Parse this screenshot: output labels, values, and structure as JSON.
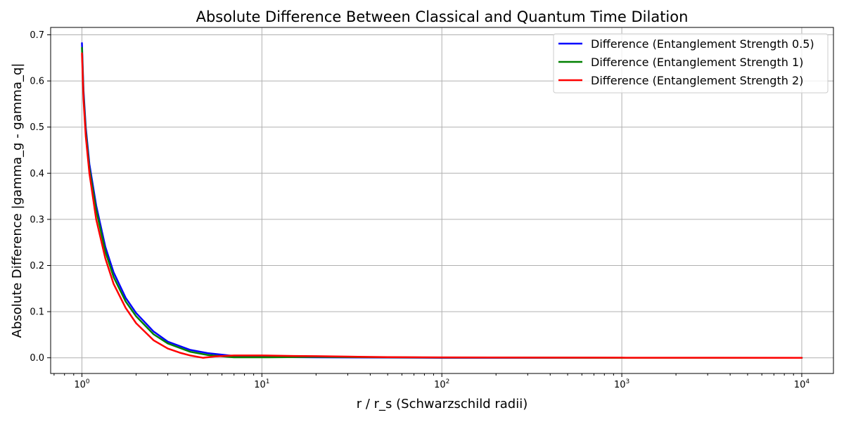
{
  "chart_data": {
    "type": "line",
    "title": "Absolute Difference Between Classical and Quantum Time Dilation",
    "xlabel": "r / r_s (Schwarzschild radii)",
    "ylabel": "Absolute Difference |gamma_g - gamma_q|",
    "xscale": "log",
    "xlim": [
      0.67,
      15000
    ],
    "ylim": [
      -0.034,
      0.716
    ],
    "grid": true,
    "legend_position": "top-right",
    "x_ticks": [
      {
        "value": 1,
        "base": "10",
        "exp": "0"
      },
      {
        "value": 10,
        "base": "10",
        "exp": "1"
      },
      {
        "value": 100,
        "base": "10",
        "exp": "2"
      },
      {
        "value": 1000,
        "base": "10",
        "exp": "3"
      },
      {
        "value": 10000,
        "base": "10",
        "exp": "4"
      }
    ],
    "y_ticks": [
      "0.0",
      "0.1",
      "0.2",
      "0.3",
      "0.4",
      "0.5",
      "0.6",
      "0.7"
    ],
    "series": [
      {
        "name": "Difference (Entanglement Strength 0.5)",
        "color": "#0000ff",
        "x": [
          1.0,
          1.02,
          1.05,
          1.1,
          1.2,
          1.35,
          1.5,
          1.75,
          2.0,
          2.5,
          3.0,
          4.0,
          5.0,
          7.0,
          10.0,
          20.0,
          50.0,
          100.0,
          1000.0,
          10000.0
        ],
        "y": [
          0.682,
          0.58,
          0.5,
          0.42,
          0.33,
          0.24,
          0.185,
          0.13,
          0.097,
          0.057,
          0.035,
          0.017,
          0.01,
          0.004,
          0.002,
          0.001,
          0.0005,
          0.0,
          0.0,
          0.0
        ]
      },
      {
        "name": "Difference (Entanglement Strength 1)",
        "color": "#008000",
        "x": [
          1.0,
          1.02,
          1.05,
          1.1,
          1.2,
          1.35,
          1.5,
          1.75,
          2.0,
          2.5,
          3.0,
          4.0,
          5.0,
          7.0,
          10.0,
          20.0,
          50.0,
          100.0,
          1000.0,
          10000.0
        ],
        "y": [
          0.672,
          0.57,
          0.49,
          0.41,
          0.32,
          0.23,
          0.175,
          0.122,
          0.09,
          0.051,
          0.031,
          0.013,
          0.006,
          0.001,
          0.001,
          0.002,
          0.001,
          0.0005,
          0.0,
          0.0
        ]
      },
      {
        "name": "Difference (Entanglement Strength 2)",
        "color": "#ff0000",
        "x": [
          1.0,
          1.02,
          1.05,
          1.1,
          1.2,
          1.35,
          1.5,
          1.75,
          2.0,
          2.5,
          3.0,
          3.5,
          4.0,
          4.7,
          5.5,
          7.0,
          10.0,
          15.0,
          20.0,
          30.0,
          50.0,
          100.0,
          1000.0,
          10000.0
        ],
        "y": [
          0.66,
          0.56,
          0.48,
          0.4,
          0.3,
          0.215,
          0.16,
          0.108,
          0.075,
          0.038,
          0.02,
          0.011,
          0.005,
          0.0,
          0.003,
          0.005,
          0.005,
          0.004,
          0.0035,
          0.0025,
          0.0015,
          0.0008,
          0.0002,
          0.0
        ]
      }
    ]
  }
}
